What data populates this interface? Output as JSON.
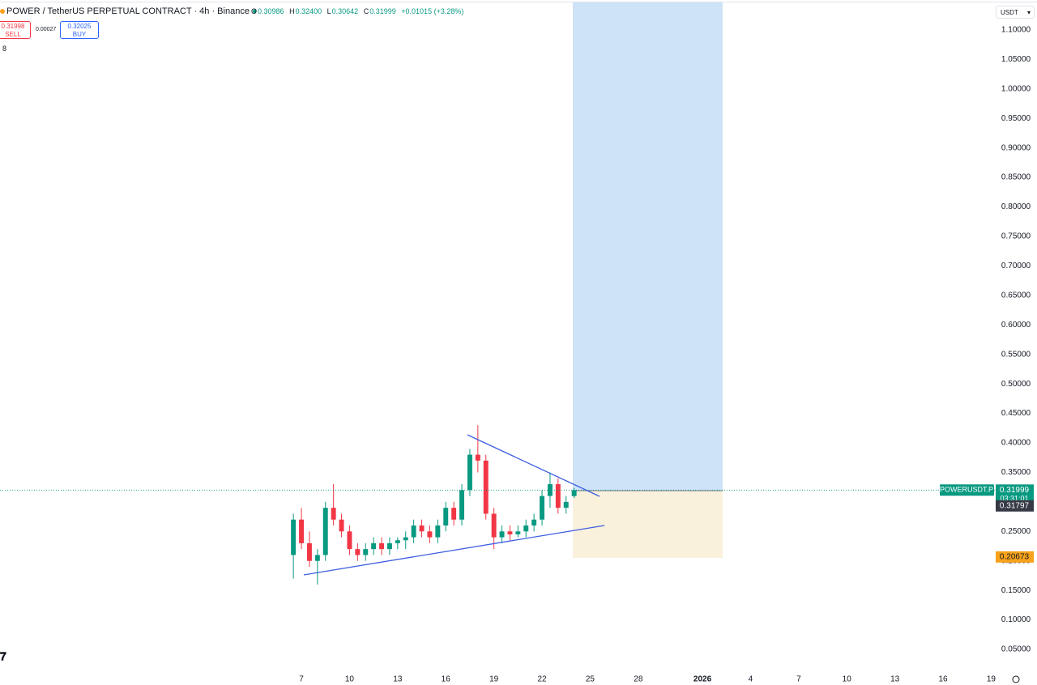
{
  "header": {
    "title": "POWER / TetherUS PERPETUAL CONTRACT · 4h · Binance",
    "ohlc": [
      {
        "label": "O",
        "value": "0.30986"
      },
      {
        "label": "H",
        "value": "0.32400"
      },
      {
        "label": "L",
        "value": "0.30642"
      },
      {
        "label": "C",
        "value": "0.31999"
      }
    ],
    "change": "+0.01015 (+3.28%)",
    "sell": {
      "price": "0.31998",
      "label": "SELL"
    },
    "spread": "0.00027",
    "buy": {
      "price": "0.32025",
      "label": "BUY"
    },
    "indicator_count": "8",
    "currency": "USDT"
  },
  "chart_data": {
    "type": "candlestick",
    "x": [
      6.5,
      7,
      7.5,
      8,
      8.5,
      9,
      9.5,
      10,
      10.5,
      11,
      11.5,
      12,
      12.5,
      13,
      13.5,
      14,
      14.5,
      15,
      15.5,
      16,
      16.5,
      17,
      17.5,
      18,
      18.5,
      19,
      19.5,
      20,
      20.5,
      21,
      21.5,
      22,
      22.5,
      23,
      23.5,
      24
    ],
    "open": [
      0.21,
      0.27,
      0.23,
      0.2,
      0.21,
      0.29,
      0.27,
      0.25,
      0.22,
      0.21,
      0.22,
      0.23,
      0.22,
      0.23,
      0.235,
      0.24,
      0.26,
      0.25,
      0.24,
      0.26,
      0.29,
      0.27,
      0.32,
      0.38,
      0.37,
      0.28,
      0.24,
      0.25,
      0.245,
      0.25,
      0.26,
      0.27,
      0.31,
      0.33,
      0.29,
      0.30986
    ],
    "high": [
      0.28,
      0.29,
      0.25,
      0.22,
      0.3,
      0.33,
      0.28,
      0.26,
      0.23,
      0.23,
      0.24,
      0.24,
      0.24,
      0.24,
      0.25,
      0.27,
      0.27,
      0.26,
      0.27,
      0.3,
      0.3,
      0.33,
      0.39,
      0.43,
      0.38,
      0.29,
      0.26,
      0.26,
      0.26,
      0.27,
      0.28,
      0.32,
      0.35,
      0.34,
      0.31,
      0.324
    ],
    "low": [
      0.17,
      0.22,
      0.19,
      0.16,
      0.2,
      0.26,
      0.24,
      0.21,
      0.2,
      0.2,
      0.21,
      0.21,
      0.21,
      0.22,
      0.22,
      0.23,
      0.24,
      0.23,
      0.23,
      0.25,
      0.26,
      0.26,
      0.31,
      0.35,
      0.27,
      0.22,
      0.23,
      0.235,
      0.24,
      0.24,
      0.25,
      0.26,
      0.29,
      0.28,
      0.28,
      0.30642
    ],
    "close": [
      0.27,
      0.23,
      0.2,
      0.21,
      0.29,
      0.27,
      0.25,
      0.22,
      0.21,
      0.22,
      0.23,
      0.22,
      0.23,
      0.235,
      0.24,
      0.26,
      0.25,
      0.24,
      0.26,
      0.29,
      0.27,
      0.32,
      0.38,
      0.37,
      0.28,
      0.24,
      0.25,
      0.245,
      0.25,
      0.26,
      0.27,
      0.31,
      0.33,
      0.29,
      0.3,
      0.31999
    ],
    "up_color": "#089981",
    "down_color": "#f23645",
    "xlim": [
      -11.79,
      50.23
    ],
    "xticks": [
      7,
      10,
      13,
      16,
      19,
      22,
      25,
      28,
      {
        "value": 32,
        "label": "2026"
      },
      {
        "value": 35,
        "label": "4"
      },
      {
        "value": 38,
        "label": "7"
      },
      {
        "value": 41,
        "label": "10"
      },
      {
        "value": 44,
        "label": "13"
      },
      {
        "value": 47,
        "label": "16"
      },
      {
        "value": 50,
        "label": "19"
      }
    ],
    "ylim": [
      0.0171,
      1.1507
    ],
    "yticks": [
      {
        "value": 0.05,
        "label": "0.05000"
      },
      {
        "value": 0.1,
        "label": "0.10000"
      },
      {
        "value": 0.15,
        "label": "0.15000"
      },
      {
        "value": 0.2,
        "label": "0.20000"
      },
      {
        "value": 0.25,
        "label": "0.25000"
      },
      {
        "value": 0.3,
        "label": "0.30000"
      },
      {
        "value": 0.35,
        "label": "0.35000"
      },
      {
        "value": 0.4,
        "label": "0.40000"
      },
      {
        "value": 0.45,
        "label": "0.45000"
      },
      {
        "value": 0.5,
        "label": "0.50000"
      },
      {
        "value": 0.55,
        "label": "0.55000"
      },
      {
        "value": 0.6,
        "label": "0.60000"
      },
      {
        "value": 0.65,
        "label": "0.65000"
      },
      {
        "value": 0.7,
        "label": "0.70000"
      },
      {
        "value": 0.75,
        "label": "0.75000"
      },
      {
        "value": 0.8,
        "label": "0.80000"
      },
      {
        "value": 0.85,
        "label": "0.85000"
      },
      {
        "value": 0.9,
        "label": "0.90000"
      },
      {
        "value": 0.95,
        "label": "0.95000"
      },
      {
        "value": 1.0,
        "label": "1.00000"
      },
      {
        "value": 1.05,
        "label": "1.05000"
      },
      {
        "value": 1.1,
        "label": "1.10000"
      }
    ],
    "price_tags": [
      {
        "value": 0.31999,
        "color": "#089981",
        "symbol": "POWERUSDT.P",
        "countdown": "03:31:01"
      },
      {
        "value": 0.31797,
        "color": "#363a45"
      },
      {
        "value": 0.20673,
        "color": "#f7a21b"
      }
    ]
  }
}
